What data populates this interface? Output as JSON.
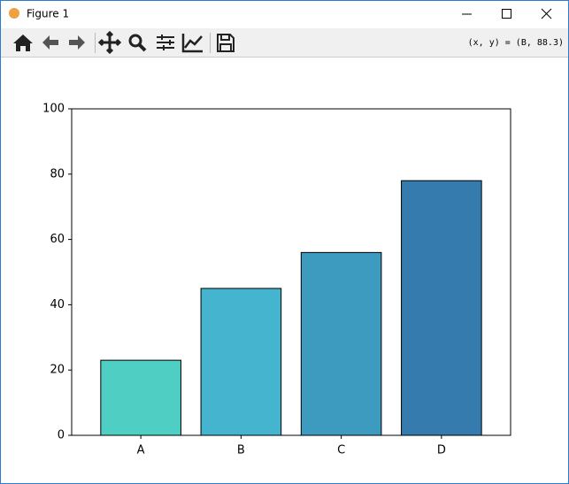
{
  "window": {
    "title": "Figure 1",
    "status": "(x, y) = (B, 88.3)"
  },
  "chart_data": {
    "type": "bar",
    "categories": [
      "A",
      "B",
      "C",
      "D"
    ],
    "values": [
      23,
      45,
      56,
      78
    ],
    "colors": [
      "#4fcfc4",
      "#44b4cf",
      "#3d9bbf",
      "#357bad"
    ],
    "ylim": [
      0,
      100
    ],
    "yticks": [
      0,
      20,
      40,
      60,
      80,
      100
    ]
  }
}
